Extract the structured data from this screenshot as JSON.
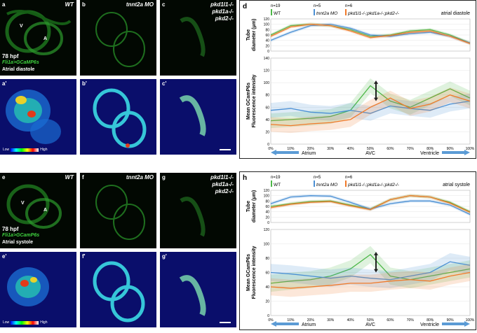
{
  "panels_top": {
    "a": {
      "label": "a",
      "cond": "WT",
      "v": "V",
      "a_mark": "A",
      "hpf": "78 hpf",
      "line": "Fli1a>GCaMP6s",
      "phase": "Atrial diastole"
    },
    "b": {
      "label": "b",
      "cond": "tnnt2a MO"
    },
    "c": {
      "label": "c",
      "cond_l1": "pkd1l1-/-",
      "cond_l2": "pkd1a-/-",
      "cond_l3": "pkd2-/-"
    },
    "a2": {
      "label": "a'",
      "low": "Low",
      "high": "High"
    },
    "b2": {
      "label": "b'"
    },
    "c2": {
      "label": "c'"
    }
  },
  "panels_bottom": {
    "e": {
      "label": "e",
      "cond": "WT",
      "v": "V",
      "a_mark": "A",
      "hpf": "78 hpf",
      "line": "Fli1a>GCamP6s",
      "phase": "Atrial systole"
    },
    "f": {
      "label": "f",
      "cond": "tnnt2a MO"
    },
    "g": {
      "label": "g",
      "cond_l1": "pkd1l1-/-",
      "cond_l2": "pkd1a-/-",
      "cond_l3": "pkd2-/-"
    },
    "e2": {
      "label": "e'",
      "low": "Low",
      "high": "High"
    },
    "f2": {
      "label": "f'"
    },
    "g2": {
      "label": "g'"
    }
  },
  "chart_d": {
    "label": "d",
    "phase": "atrial diastole"
  },
  "chart_h": {
    "label": "h",
    "phase": "atrial systole"
  },
  "legend": {
    "n_wt": "n=19",
    "wt": "WT",
    "n_mo": "n=5",
    "mo": "tnnt2a MO",
    "n_mut": "n=6",
    "mut": "pkd1l1-/-;pkd1a-/-;pkd2-/-"
  },
  "axes": {
    "tube_ylabel1": "Tube",
    "tube_ylabel2": "diameter (μm)",
    "fl_ylabel1": "Mean GCamP6s",
    "fl_ylabel2": "Fluorescence intensity",
    "atrium": "Atrium",
    "avc": "AVC",
    "ventricle": "Ventricle"
  },
  "colors": {
    "wt": "#4db848",
    "mo": "#4a8fd4",
    "mut": "#f07a2a"
  },
  "chart_data": [
    {
      "type": "line",
      "title": "atrial diastole",
      "subplots": [
        {
          "name": "tube",
          "ylabel": "Tube diameter (μm)",
          "ylim": [
            0,
            120
          ],
          "x": [
            "0%",
            "10%",
            "20%",
            "30%",
            "40%",
            "50%",
            "60%",
            "70%",
            "80%",
            "90%",
            "100%"
          ],
          "series": [
            {
              "name": "WT",
              "values": [
                60,
                95,
                100,
                95,
                80,
                55,
                60,
                75,
                80,
                60,
                30
              ]
            },
            {
              "name": "tnnt2a MO",
              "values": [
                40,
                70,
                95,
                100,
                85,
                60,
                55,
                65,
                70,
                55,
                30
              ]
            },
            {
              "name": "pkd1l1-/-;pkd1a-/-;pkd2-/-",
              "values": [
                55,
                90,
                100,
                95,
                75,
                50,
                58,
                70,
                75,
                55,
                28
              ]
            }
          ]
        },
        {
          "name": "fluorescence",
          "ylabel": "Mean GCamP6s Fluorescence intensity",
          "ylim": [
            0,
            140
          ],
          "x": [
            "0%",
            "10%",
            "20%",
            "30%",
            "40%",
            "50%",
            "60%",
            "70%",
            "80%",
            "90%",
            "100%"
          ],
          "series": [
            {
              "name": "WT",
              "values": [
                38,
                40,
                42,
                45,
                55,
                95,
                70,
                60,
                75,
                90,
                75
              ]
            },
            {
              "name": "tnnt2a MO",
              "values": [
                55,
                58,
                52,
                50,
                55,
                50,
                62,
                58,
                55,
                65,
                70
              ]
            },
            {
              "name": "pkd1l1-/-;pkd1a-/-;pkd2-/-",
              "values": [
                32,
                30,
                33,
                35,
                40,
                60,
                75,
                58,
                65,
                80,
                70
              ]
            }
          ]
        }
      ],
      "xlabels_region": [
        "Atrium",
        "AVC",
        "Ventricle"
      ]
    },
    {
      "type": "line",
      "title": "atrial systole",
      "subplots": [
        {
          "name": "tube",
          "ylabel": "Tube diameter (μm)",
          "ylim": [
            0,
            120
          ],
          "x": [
            "0%",
            "10%",
            "20%",
            "30%",
            "40%",
            "50%",
            "60%",
            "70%",
            "80%",
            "90%",
            "100%"
          ],
          "series": [
            {
              "name": "WT",
              "values": [
                60,
                70,
                78,
                80,
                65,
                50,
                85,
                100,
                95,
                75,
                40
              ]
            },
            {
              "name": "tnnt2a MO",
              "values": [
                70,
                95,
                100,
                98,
                75,
                50,
                70,
                80,
                80,
                65,
                30
              ]
            },
            {
              "name": "pkd1l1-/-;pkd1a-/-;pkd2-/-",
              "values": [
                55,
                68,
                75,
                78,
                62,
                48,
                85,
                100,
                95,
                72,
                38
              ]
            }
          ]
        },
        {
          "name": "fluorescence",
          "ylabel": "Mean GCamP6s Fluorescence intensity",
          "ylim": [
            0,
            120
          ],
          "x": [
            "0%",
            "10%",
            "20%",
            "30%",
            "40%",
            "50%",
            "60%",
            "70%",
            "80%",
            "90%",
            "100%"
          ],
          "series": [
            {
              "name": "WT",
              "values": [
                45,
                48,
                50,
                55,
                65,
                85,
                55,
                50,
                55,
                60,
                65
              ]
            },
            {
              "name": "tnnt2a MO",
              "values": [
                60,
                58,
                55,
                52,
                55,
                52,
                50,
                55,
                60,
                75,
                70
              ]
            },
            {
              "name": "pkd1l1-/-;pkd1a-/-;pkd2-/-",
              "values": [
                40,
                38,
                40,
                42,
                45,
                45,
                48,
                50,
                48,
                55,
                60
              ]
            }
          ]
        }
      ],
      "xlabels_region": [
        "Atrium",
        "AVC",
        "Ventricle"
      ]
    }
  ]
}
